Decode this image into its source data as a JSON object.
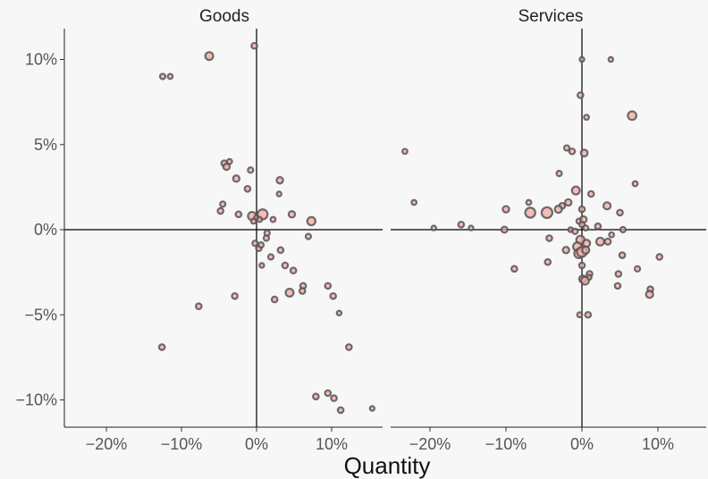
{
  "chart_data": {
    "type": "scatter",
    "xlabel": "Quantity",
    "ylabel": "",
    "xlim": [
      -25,
      16
    ],
    "ylim": [
      -11.5,
      12
    ],
    "x_ticks": [
      -20,
      -10,
      0,
      10
    ],
    "y_ticks": [
      -10,
      -5,
      0,
      5,
      10
    ],
    "x_tick_labels": [
      "−20%",
      "−10%",
      "0%",
      "10%"
    ],
    "y_tick_labels": [
      "−10%",
      "−5%",
      "0%",
      "5%",
      "10%"
    ],
    "grid": false,
    "colors": {
      "fill": "#f4a7a3",
      "stroke": "#555555",
      "background": "#f7f7f7",
      "axis": "#000000"
    },
    "panels": [
      {
        "title": "Goods",
        "points": [
          {
            "x": -0.3,
            "y": 10.8,
            "s": 1.6
          },
          {
            "x": -6.3,
            "y": 10.2,
            "s": 2.2
          },
          {
            "x": -12.5,
            "y": 9.0,
            "s": 1.5
          },
          {
            "x": -11.5,
            "y": 9.0,
            "s": 1.4
          },
          {
            "x": -4.3,
            "y": 3.9,
            "s": 1.6
          },
          {
            "x": -4.0,
            "y": 3.7,
            "s": 1.8
          },
          {
            "x": -3.6,
            "y": 4.0,
            "s": 1.4
          },
          {
            "x": -0.8,
            "y": 3.5,
            "s": 1.5
          },
          {
            "x": -2.7,
            "y": 3.0,
            "s": 1.8
          },
          {
            "x": -1.2,
            "y": 2.4,
            "s": 1.6
          },
          {
            "x": 3.1,
            "y": 2.9,
            "s": 1.8
          },
          {
            "x": 3.0,
            "y": 2.1,
            "s": 1.3
          },
          {
            "x": -4.5,
            "y": 1.5,
            "s": 1.5
          },
          {
            "x": -4.8,
            "y": 1.1,
            "s": 1.6
          },
          {
            "x": -2.4,
            "y": 0.9,
            "s": 1.6
          },
          {
            "x": -0.6,
            "y": 0.8,
            "s": 2.3
          },
          {
            "x": 0.0,
            "y": 0.7,
            "s": 1.4
          },
          {
            "x": 0.8,
            "y": 0.9,
            "s": 2.8
          },
          {
            "x": -0.4,
            "y": 0.5,
            "s": 1.4
          },
          {
            "x": 0.4,
            "y": 0.6,
            "s": 1.4
          },
          {
            "x": 2.2,
            "y": 0.6,
            "s": 1.4
          },
          {
            "x": 4.7,
            "y": 0.9,
            "s": 1.8
          },
          {
            "x": 7.3,
            "y": 0.5,
            "s": 2.3
          },
          {
            "x": 1.4,
            "y": -0.2,
            "s": 1.5
          },
          {
            "x": 1.3,
            "y": -0.5,
            "s": 1.5
          },
          {
            "x": 6.9,
            "y": -0.4,
            "s": 1.5
          },
          {
            "x": -0.2,
            "y": -0.8,
            "s": 1.5
          },
          {
            "x": 0.3,
            "y": -1.1,
            "s": 1.5
          },
          {
            "x": 0.6,
            "y": -0.9,
            "s": 1.5
          },
          {
            "x": 3.2,
            "y": -1.2,
            "s": 1.6
          },
          {
            "x": 1.9,
            "y": -1.6,
            "s": 1.5
          },
          {
            "x": 0.7,
            "y": -2.1,
            "s": 1.3
          },
          {
            "x": 3.8,
            "y": -2.1,
            "s": 1.6
          },
          {
            "x": 4.9,
            "y": -2.4,
            "s": 1.6
          },
          {
            "x": 6.2,
            "y": -3.3,
            "s": 1.6
          },
          {
            "x": 6.1,
            "y": -3.6,
            "s": 1.6
          },
          {
            "x": 4.4,
            "y": -3.7,
            "s": 2.2
          },
          {
            "x": 9.5,
            "y": -3.3,
            "s": 1.6
          },
          {
            "x": 10.2,
            "y": -3.9,
            "s": 1.6
          },
          {
            "x": 2.4,
            "y": -4.1,
            "s": 1.6
          },
          {
            "x": -2.9,
            "y": -3.9,
            "s": 1.6
          },
          {
            "x": -7.7,
            "y": -4.5,
            "s": 1.6
          },
          {
            "x": 11.0,
            "y": -4.9,
            "s": 1.3
          },
          {
            "x": -12.6,
            "y": -6.9,
            "s": 1.6
          },
          {
            "x": 12.3,
            "y": -6.9,
            "s": 1.6
          },
          {
            "x": 7.9,
            "y": -9.8,
            "s": 1.6
          },
          {
            "x": 9.5,
            "y": -9.6,
            "s": 1.6
          },
          {
            "x": 10.3,
            "y": -9.9,
            "s": 1.6
          },
          {
            "x": 11.2,
            "y": -10.6,
            "s": 1.6
          },
          {
            "x": 15.4,
            "y": -10.5,
            "s": 1.3
          }
        ]
      },
      {
        "title": "Services",
        "points": [
          {
            "x": 0.0,
            "y": 10.0,
            "s": 1.3
          },
          {
            "x": 3.8,
            "y": 10.0,
            "s": 1.3
          },
          {
            "x": -0.2,
            "y": 7.9,
            "s": 1.6
          },
          {
            "x": 6.6,
            "y": 6.7,
            "s": 2.4
          },
          {
            "x": 0.6,
            "y": 6.6,
            "s": 1.4
          },
          {
            "x": -23.3,
            "y": 4.6,
            "s": 1.4
          },
          {
            "x": -2.0,
            "y": 4.8,
            "s": 1.5
          },
          {
            "x": -1.3,
            "y": 4.6,
            "s": 1.6
          },
          {
            "x": 0.3,
            "y": 4.5,
            "s": 1.9
          },
          {
            "x": -3.0,
            "y": 3.3,
            "s": 1.5
          },
          {
            "x": 7.0,
            "y": 2.7,
            "s": 1.4
          },
          {
            "x": -0.8,
            "y": 2.3,
            "s": 2.2
          },
          {
            "x": 1.2,
            "y": 2.1,
            "s": 1.6
          },
          {
            "x": -1.8,
            "y": 1.6,
            "s": 1.8
          },
          {
            "x": -2.6,
            "y": 1.4,
            "s": 1.6
          },
          {
            "x": -3.1,
            "y": 1.2,
            "s": 2.0
          },
          {
            "x": -7.0,
            "y": 1.6,
            "s": 1.4
          },
          {
            "x": -22.1,
            "y": 1.6,
            "s": 1.4
          },
          {
            "x": -10.0,
            "y": 1.2,
            "s": 1.8
          },
          {
            "x": -6.8,
            "y": 1.0,
            "s": 2.8
          },
          {
            "x": -4.6,
            "y": 1.0,
            "s": 3.0
          },
          {
            "x": 3.3,
            "y": 1.4,
            "s": 2.0
          },
          {
            "x": 5.0,
            "y": 1.0,
            "s": 1.6
          },
          {
            "x": 0.0,
            "y": 1.2,
            "s": 1.6
          },
          {
            "x": -0.4,
            "y": 0.5,
            "s": 1.4
          },
          {
            "x": 0.2,
            "y": 0.6,
            "s": 1.8
          },
          {
            "x": 0.0,
            "y": 0.3,
            "s": 1.5
          },
          {
            "x": -15.9,
            "y": 0.3,
            "s": 1.6
          },
          {
            "x": -19.5,
            "y": 0.1,
            "s": 1.3
          },
          {
            "x": -14.6,
            "y": 0.1,
            "s": 1.3
          },
          {
            "x": -10.2,
            "y": 0.0,
            "s": 1.7
          },
          {
            "x": -1.5,
            "y": 0.0,
            "s": 1.3
          },
          {
            "x": -0.9,
            "y": -0.1,
            "s": 1.5
          },
          {
            "x": 0.5,
            "y": 0.1,
            "s": 1.4
          },
          {
            "x": 2.1,
            "y": 0.2,
            "s": 1.6
          },
          {
            "x": 5.4,
            "y": 0.0,
            "s": 1.5
          },
          {
            "x": 3.9,
            "y": -0.3,
            "s": 1.4
          },
          {
            "x": -4.3,
            "y": -0.5,
            "s": 1.6
          },
          {
            "x": -0.2,
            "y": -0.6,
            "s": 2.3
          },
          {
            "x": 0.6,
            "y": -0.8,
            "s": 2.0
          },
          {
            "x": 2.4,
            "y": -0.7,
            "s": 2.2
          },
          {
            "x": 3.4,
            "y": -0.7,
            "s": 1.7
          },
          {
            "x": -2.1,
            "y": -1.2,
            "s": 1.8
          },
          {
            "x": -0.6,
            "y": -1.0,
            "s": 2.4
          },
          {
            "x": -0.4,
            "y": -1.4,
            "s": 2.6
          },
          {
            "x": 0.0,
            "y": -1.3,
            "s": 2.8
          },
          {
            "x": 0.5,
            "y": -1.2,
            "s": 2.0
          },
          {
            "x": 5.3,
            "y": -1.5,
            "s": 1.6
          },
          {
            "x": 10.2,
            "y": -1.6,
            "s": 1.6
          },
          {
            "x": -4.5,
            "y": -1.9,
            "s": 1.6
          },
          {
            "x": -8.9,
            "y": -2.3,
            "s": 1.6
          },
          {
            "x": 0.0,
            "y": -2.1,
            "s": 1.6
          },
          {
            "x": 7.3,
            "y": -2.3,
            "s": 1.5
          },
          {
            "x": 1.0,
            "y": -2.6,
            "s": 1.6
          },
          {
            "x": 4.8,
            "y": -2.6,
            "s": 1.6
          },
          {
            "x": 0.9,
            "y": -2.8,
            "s": 1.5
          },
          {
            "x": 0.1,
            "y": -2.9,
            "s": 2.0
          },
          {
            "x": 0.4,
            "y": -3.0,
            "s": 2.2
          },
          {
            "x": 4.7,
            "y": -3.3,
            "s": 1.6
          },
          {
            "x": 9.0,
            "y": -3.5,
            "s": 1.6
          },
          {
            "x": 8.9,
            "y": -3.8,
            "s": 2.0
          },
          {
            "x": -0.3,
            "y": -5.0,
            "s": 1.4
          },
          {
            "x": 0.8,
            "y": -5.0,
            "s": 1.6
          }
        ]
      }
    ]
  }
}
